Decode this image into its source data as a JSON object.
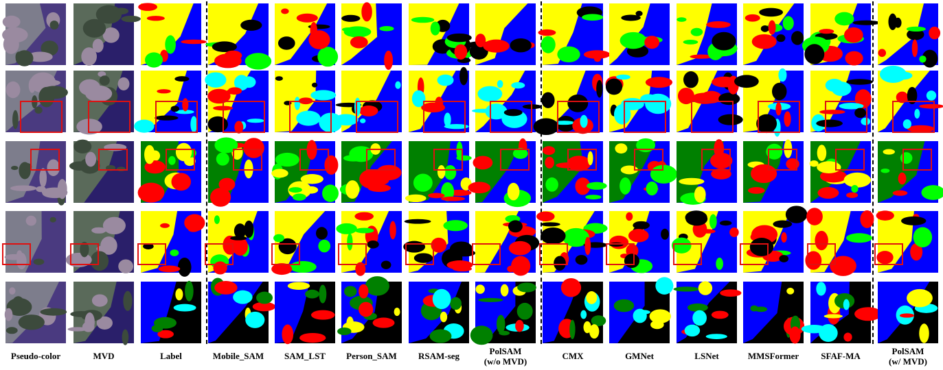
{
  "columns": [
    [
      "Pseudo-color"
    ],
    [
      "MVD"
    ],
    [
      "Label"
    ],
    [
      "Mobile_SAM"
    ],
    [
      "SAM_LST"
    ],
    [
      "Person_SAM"
    ],
    [
      "RSAM-seg"
    ],
    [
      "PolSAM",
      "(w/o MVD)"
    ],
    [
      "CMX"
    ],
    [
      "GMNet"
    ],
    [
      "LSNet"
    ],
    [
      "MMSFormer"
    ],
    [
      "SFAF-MA"
    ],
    [
      "PolSAM",
      "(w/ MVD)"
    ]
  ]
}
